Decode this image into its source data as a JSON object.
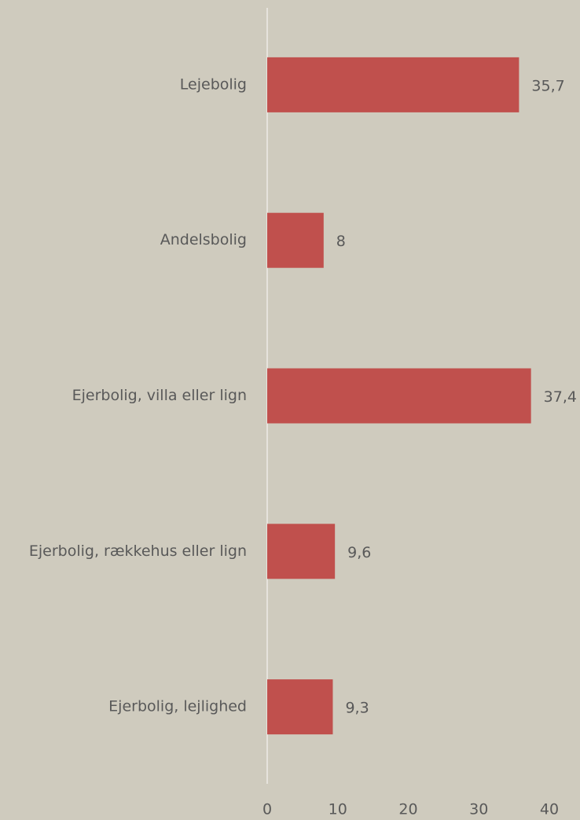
{
  "chart_data": {
    "type": "bar",
    "orientation": "horizontal",
    "categories": [
      "Lejebolig",
      "Andelsbolig",
      "Ejerbolig, villa eller lign",
      "Ejerbolig, rækkehus eller lign",
      "Ejerbolig, lejlighed"
    ],
    "values": [
      35.7,
      8,
      37.4,
      9.6,
      9.3
    ],
    "value_labels": [
      "35,7",
      "8",
      "37,4",
      "9,6",
      "9,3"
    ],
    "color": "#c0504d",
    "xlim": [
      0,
      40
    ],
    "xticks": [
      0,
      10,
      20,
      30,
      40
    ],
    "grid": false
  }
}
